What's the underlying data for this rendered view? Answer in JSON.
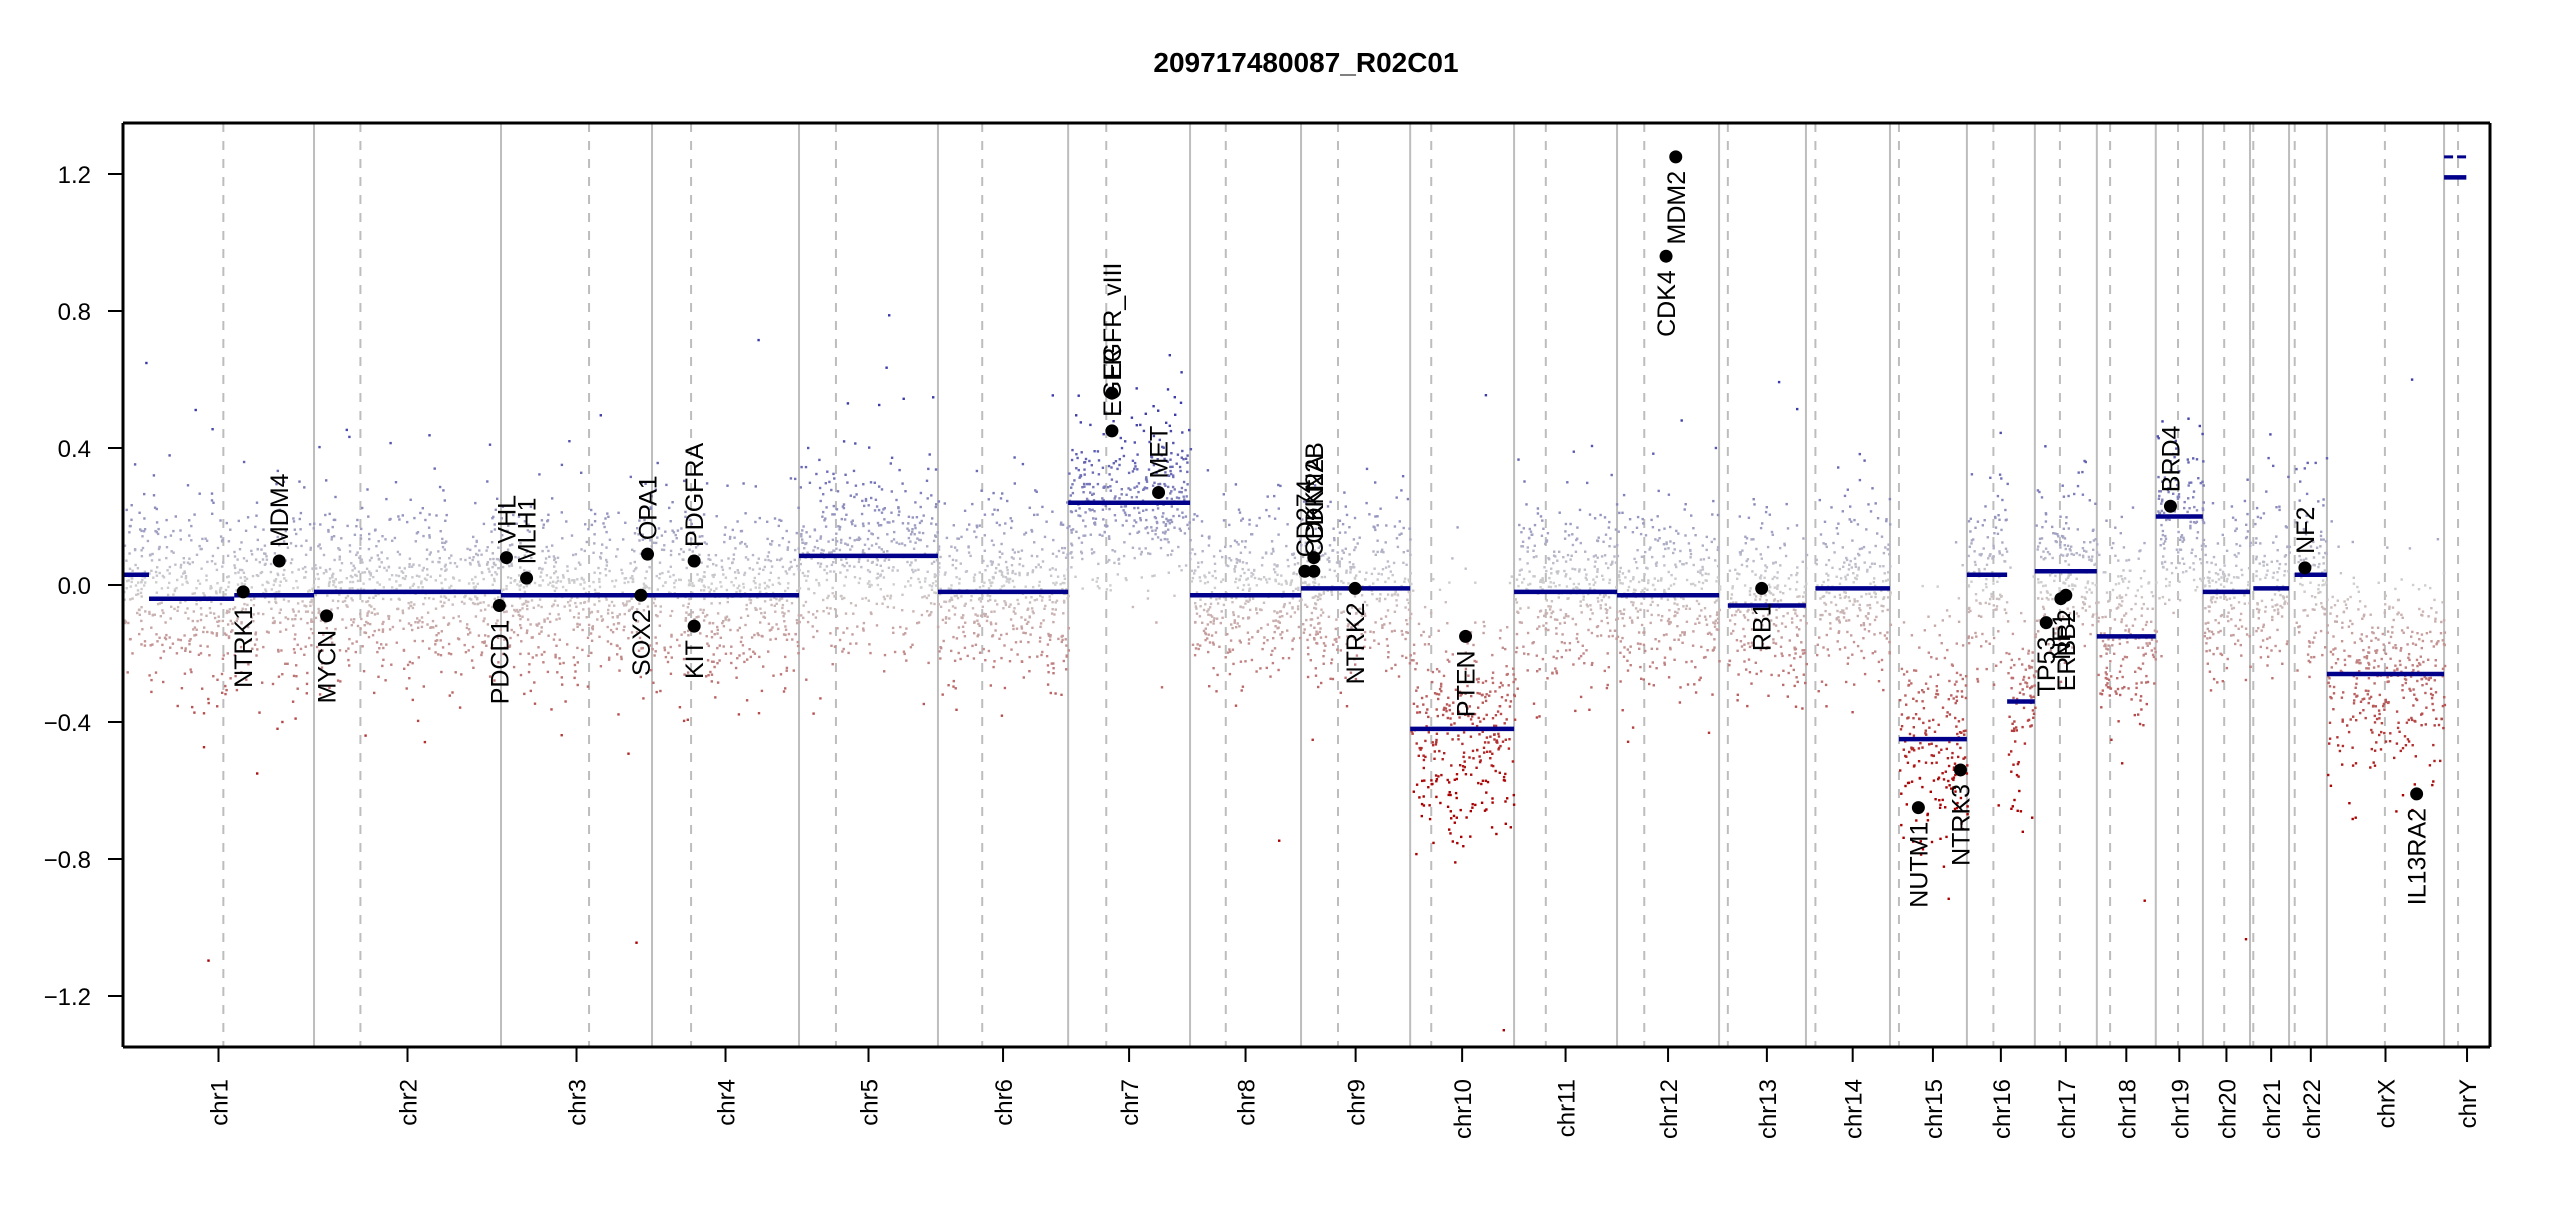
{
  "chart_data": {
    "type": "scatter",
    "title": "209717480087_R02C01",
    "xlabel": "",
    "ylabel": "",
    "ylim": [
      -1.35,
      1.35
    ],
    "yticks": [
      -1.2,
      -0.8,
      -0.4,
      0.0,
      0.4,
      0.8,
      1.2
    ],
    "ytick_labels": [
      "−1.2",
      "−0.8",
      "−0.4",
      "0.0",
      "0.4",
      "0.8",
      "1.2"
    ],
    "grid": false,
    "legend": "none",
    "colors": {
      "gain": "#3a3aa8",
      "neutral": "#cfcfcf",
      "loss": "#a80000",
      "segment": "#00008b",
      "gene_point": "#000000",
      "chrom_boundary": "#bdbdbd",
      "centromere": "#bdbdbd"
    },
    "chromosomes": [
      {
        "name": "chr1",
        "rel_start": 0.0,
        "rel_end": 0.0807,
        "centromere": 0.0424,
        "data_start": 0.0
      },
      {
        "name": "chr2",
        "rel_start": 0.0807,
        "rel_end": 0.1597,
        "centromere": 0.1003,
        "data_start": 0.0807
      },
      {
        "name": "chr3",
        "rel_start": 0.1597,
        "rel_end": 0.2235,
        "centromere": 0.1969,
        "data_start": 0.1597
      },
      {
        "name": "chr4",
        "rel_start": 0.2235,
        "rel_end": 0.2856,
        "centromere": 0.24,
        "data_start": 0.2235
      },
      {
        "name": "chr5",
        "rel_start": 0.2856,
        "rel_end": 0.3443,
        "centromere": 0.3012,
        "data_start": 0.2856
      },
      {
        "name": "chr6",
        "rel_start": 0.3443,
        "rel_end": 0.3993,
        "centromere": 0.363,
        "data_start": 0.3443
      },
      {
        "name": "chr7",
        "rel_start": 0.3993,
        "rel_end": 0.4508,
        "centromere": 0.4154,
        "data_start": 0.3993
      },
      {
        "name": "chr8",
        "rel_start": 0.4508,
        "rel_end": 0.4977,
        "centromere": 0.4659,
        "data_start": 0.4508
      },
      {
        "name": "chr9",
        "rel_start": 0.4977,
        "rel_end": 0.5438,
        "centromere": 0.5133,
        "data_start": 0.4977
      },
      {
        "name": "chr10",
        "rel_start": 0.5438,
        "rel_end": 0.5877,
        "centromere": 0.5527,
        "data_start": 0.5438
      },
      {
        "name": "chr11",
        "rel_start": 0.5877,
        "rel_end": 0.6312,
        "centromere": 0.6011,
        "data_start": 0.5877
      },
      {
        "name": "chr12",
        "rel_start": 0.6312,
        "rel_end": 0.6743,
        "centromere": 0.6427,
        "data_start": 0.6312
      },
      {
        "name": "chr13",
        "rel_start": 0.6743,
        "rel_end": 0.711,
        "centromere": 0.678,
        "data_start": 0.678
      },
      {
        "name": "chr14",
        "rel_start": 0.711,
        "rel_end": 0.7465,
        "centromere": 0.715,
        "data_start": 0.715
      },
      {
        "name": "chr15",
        "rel_start": 0.7465,
        "rel_end": 0.779,
        "centromere": 0.7503,
        "data_start": 0.7503
      },
      {
        "name": "chr16",
        "rel_start": 0.779,
        "rel_end": 0.8077,
        "centromere": 0.7902,
        "data_start": 0.779
      },
      {
        "name": "chr17",
        "rel_start": 0.8077,
        "rel_end": 0.8339,
        "centromere": 0.8183,
        "data_start": 0.8077
      },
      {
        "name": "chr18",
        "rel_start": 0.8339,
        "rel_end": 0.8588,
        "centromere": 0.8395,
        "data_start": 0.8339
      },
      {
        "name": "chr19",
        "rel_start": 0.8588,
        "rel_end": 0.8787,
        "centromere": 0.8682,
        "data_start": 0.8588
      },
      {
        "name": "chr20",
        "rel_start": 0.8787,
        "rel_end": 0.8986,
        "centromere": 0.8877,
        "data_start": 0.8787
      },
      {
        "name": "chr21",
        "rel_start": 0.8986,
        "rel_end": 0.9151,
        "centromere": 0.9,
        "data_start": 0.9
      },
      {
        "name": "chr22",
        "rel_start": 0.9151,
        "rel_end": 0.9311,
        "centromere": 0.9175,
        "data_start": 0.9175
      },
      {
        "name": "chrX",
        "rel_start": 0.9311,
        "rel_end": 0.9806,
        "centromere": 0.9556,
        "data_start": 0.9311
      },
      {
        "name": "chrY",
        "rel_start": 0.9806,
        "rel_end": 1.0,
        "centromere": 0.9865,
        "data_start": 0.9806
      }
    ],
    "segments": [
      {
        "chrom": "chr1",
        "start": 0.0,
        "end": 0.011,
        "value": 0.03
      },
      {
        "chrom": "chr1",
        "start": 0.011,
        "end": 0.047,
        "value": -0.04
      },
      {
        "chrom": "chr1",
        "start": 0.047,
        "end": 0.0807,
        "value": -0.03
      },
      {
        "chrom": "chr2",
        "start": 0.0807,
        "end": 0.1597,
        "value": -0.02
      },
      {
        "chrom": "chr3",
        "start": 0.1597,
        "end": 0.2235,
        "value": -0.03
      },
      {
        "chrom": "chr4",
        "start": 0.2235,
        "end": 0.2856,
        "value": -0.03
      },
      {
        "chrom": "chr5",
        "start": 0.2856,
        "end": 0.3443,
        "value": 0.085
      },
      {
        "chrom": "chr6",
        "start": 0.3443,
        "end": 0.3993,
        "value": -0.02
      },
      {
        "chrom": "chr7",
        "start": 0.3993,
        "end": 0.4508,
        "value": 0.24
      },
      {
        "chrom": "chr8",
        "start": 0.4508,
        "end": 0.4977,
        "value": -0.03
      },
      {
        "chrom": "chr9",
        "start": 0.4977,
        "end": 0.5438,
        "value": -0.01
      },
      {
        "chrom": "chr10",
        "start": 0.5438,
        "end": 0.5877,
        "value": -0.42
      },
      {
        "chrom": "chr11",
        "start": 0.5877,
        "end": 0.6312,
        "value": -0.02
      },
      {
        "chrom": "chr12",
        "start": 0.6312,
        "end": 0.6743,
        "value": -0.03
      },
      {
        "chrom": "chr13",
        "start": 0.678,
        "end": 0.711,
        "value": -0.06
      },
      {
        "chrom": "chr14",
        "start": 0.715,
        "end": 0.7465,
        "value": -0.01
      },
      {
        "chrom": "chr15",
        "start": 0.7503,
        "end": 0.779,
        "value": -0.45
      },
      {
        "chrom": "chr16",
        "start": 0.779,
        "end": 0.796,
        "value": 0.03
      },
      {
        "chrom": "chr16",
        "start": 0.796,
        "end": 0.8077,
        "value": -0.34
      },
      {
        "chrom": "chr17",
        "start": 0.8077,
        "end": 0.8339,
        "value": 0.04
      },
      {
        "chrom": "chr18",
        "start": 0.8339,
        "end": 0.8588,
        "value": -0.15
      },
      {
        "chrom": "chr19",
        "start": 0.8588,
        "end": 0.8787,
        "value": 0.2
      },
      {
        "chrom": "chr20",
        "start": 0.8787,
        "end": 0.8986,
        "value": -0.02
      },
      {
        "chrom": "chr21",
        "start": 0.9,
        "end": 0.9151,
        "value": -0.01
      },
      {
        "chrom": "chr22",
        "start": 0.9175,
        "end": 0.9311,
        "value": 0.03
      },
      {
        "chrom": "chrX",
        "start": 0.9311,
        "end": 0.9806,
        "value": -0.26
      },
      {
        "chrom": "chrY",
        "start": 0.9806,
        "end": 0.99,
        "value": 1.19,
        "style": "solid"
      },
      {
        "chrom": "chrY",
        "start": 0.9806,
        "end": 0.99,
        "value": 1.25,
        "style": "dashed"
      }
    ],
    "scatter_spread": [
      {
        "chrom": "chr1",
        "sd": 0.13
      },
      {
        "chrom": "chr2",
        "sd": 0.13
      },
      {
        "chrom": "chr3",
        "sd": 0.13
      },
      {
        "chrom": "chr4",
        "sd": 0.13
      },
      {
        "chrom": "chr5",
        "sd": 0.14
      },
      {
        "chrom": "chr6",
        "sd": 0.13
      },
      {
        "chrom": "chr7",
        "sd": 0.12
      },
      {
        "chrom": "chr8",
        "sd": 0.13
      },
      {
        "chrom": "chr9",
        "sd": 0.13
      },
      {
        "chrom": "chr10",
        "sd": 0.17
      },
      {
        "chrom": "chr11",
        "sd": 0.13
      },
      {
        "chrom": "chr12",
        "sd": 0.13
      },
      {
        "chrom": "chr13",
        "sd": 0.13
      },
      {
        "chrom": "chr14",
        "sd": 0.13
      },
      {
        "chrom": "chr15",
        "sd": 0.16
      },
      {
        "chrom": "chr16",
        "sd": 0.15
      },
      {
        "chrom": "chr17",
        "sd": 0.13
      },
      {
        "chrom": "chr18",
        "sd": 0.14
      },
      {
        "chrom": "chr19",
        "sd": 0.12
      },
      {
        "chrom": "chr20",
        "sd": 0.13
      },
      {
        "chrom": "chr21",
        "sd": 0.13
      },
      {
        "chrom": "chr22",
        "sd": 0.13
      },
      {
        "chrom": "chrX",
        "sd": 0.15
      },
      {
        "chrom": "chrY",
        "sd": 0.0
      }
    ],
    "genes": [
      {
        "name": "NTRK1",
        "chrom": "chr1",
        "pos": 0.0508,
        "value": -0.02,
        "label_side": "below"
      },
      {
        "name": "MDM4",
        "chrom": "chr1",
        "pos": 0.066,
        "value": 0.07,
        "label_side": "above"
      },
      {
        "name": "MYCN",
        "chrom": "chr2",
        "pos": 0.086,
        "value": -0.09,
        "label_side": "below"
      },
      {
        "name": "PDCD1",
        "chrom": "chr2",
        "pos": 0.159,
        "value": -0.06,
        "label_side": "below"
      },
      {
        "name": "VHL",
        "chrom": "chr3",
        "pos": 0.162,
        "value": 0.08,
        "label_side": "above"
      },
      {
        "name": "MLH1",
        "chrom": "chr3",
        "pos": 0.1705,
        "value": 0.02,
        "label_side": "above"
      },
      {
        "name": "SOX2",
        "chrom": "chr3",
        "pos": 0.2188,
        "value": -0.03,
        "label_side": "below"
      },
      {
        "name": "OPA1",
        "chrom": "chr3",
        "pos": 0.2216,
        "value": 0.09,
        "label_side": "above"
      },
      {
        "name": "PDGFRA",
        "chrom": "chr4",
        "pos": 0.2413,
        "value": 0.07,
        "label_side": "above"
      },
      {
        "name": "KIT",
        "chrom": "chr4",
        "pos": 0.2413,
        "value": -0.12,
        "label_side": "below"
      },
      {
        "name": "EGFR",
        "chrom": "chr7",
        "pos": 0.4178,
        "value": 0.45,
        "label_side": "above"
      },
      {
        "name": "EGFR_vIII",
        "chrom": "chr7",
        "pos": 0.4178,
        "value": 0.56,
        "label_side": "above"
      },
      {
        "name": "MET",
        "chrom": "chr7",
        "pos": 0.4375,
        "value": 0.27,
        "label_side": "above"
      },
      {
        "name": "CD274",
        "chrom": "chr9",
        "pos": 0.4993,
        "value": 0.04,
        "label_side": "above"
      },
      {
        "name": "CDKN2A",
        "chrom": "chr9",
        "pos": 0.5031,
        "value": 0.04,
        "label_side": "above"
      },
      {
        "name": "CDKN2B",
        "chrom": "chr9",
        "pos": 0.5031,
        "value": 0.08,
        "label_side": "above"
      },
      {
        "name": "NTRK2",
        "chrom": "chr9",
        "pos": 0.5205,
        "value": -0.01,
        "label_side": "below"
      },
      {
        "name": "PTEN",
        "chrom": "chr10",
        "pos": 0.5672,
        "value": -0.15,
        "label_side": "below"
      },
      {
        "name": "CDK4",
        "chrom": "chr12",
        "pos": 0.6519,
        "value": 0.96,
        "label_side": "below"
      },
      {
        "name": "MDM2",
        "chrom": "chr12",
        "pos": 0.656,
        "value": 1.25,
        "label_side": "below"
      },
      {
        "name": "RB1",
        "chrom": "chr13",
        "pos": 0.6923,
        "value": -0.01,
        "label_side": "below"
      },
      {
        "name": "NUTM1",
        "chrom": "chr15",
        "pos": 0.7585,
        "value": -0.65,
        "label_side": "below"
      },
      {
        "name": "NTRK3",
        "chrom": "chr15",
        "pos": 0.7763,
        "value": -0.54,
        "label_side": "below"
      },
      {
        "name": "TP53",
        "chrom": "chr17",
        "pos": 0.8125,
        "value": -0.11,
        "label_side": "below"
      },
      {
        "name": "NF1",
        "chrom": "chr17",
        "pos": 0.8187,
        "value": -0.04,
        "label_side": "below"
      },
      {
        "name": "ERBB2",
        "chrom": "chr17",
        "pos": 0.8208,
        "value": -0.03,
        "label_side": "below"
      },
      {
        "name": "BRD4",
        "chrom": "chr19",
        "pos": 0.865,
        "value": 0.23,
        "label_side": "above"
      },
      {
        "name": "NF2",
        "chrom": "chr22",
        "pos": 0.9218,
        "value": 0.05,
        "label_side": "above"
      },
      {
        "name": "IL13RA2",
        "chrom": "chrX",
        "pos": 0.969,
        "value": -0.61,
        "label_side": "below"
      }
    ]
  }
}
